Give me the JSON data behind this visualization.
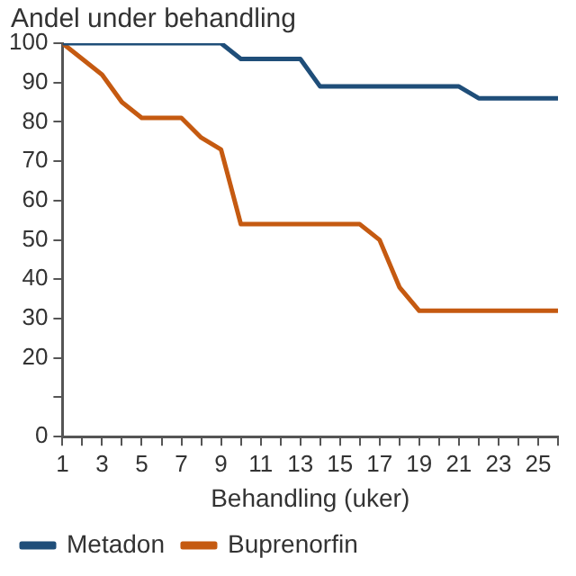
{
  "chart_data": {
    "type": "line",
    "title": "Andel under behandling",
    "xlabel": "Behandling (uker)",
    "x": [
      1,
      2,
      3,
      4,
      5,
      6,
      7,
      8,
      9,
      10,
      11,
      12,
      13,
      14,
      15,
      16,
      17,
      18,
      19,
      20,
      21,
      22,
      23,
      24,
      25,
      26
    ],
    "series": [
      {
        "name": "Metadon",
        "color": "#1f4e79",
        "values": [
          100,
          100,
          100,
          100,
          100,
          100,
          100,
          100,
          100,
          96,
          96,
          96,
          96,
          89,
          89,
          89,
          89,
          89,
          89,
          89,
          89,
          86,
          86,
          86,
          86,
          86
        ]
      },
      {
        "name": "Buprenorfin",
        "color": "#c55a11",
        "values": [
          100,
          96,
          92,
          85,
          81,
          81,
          81,
          76,
          73,
          54,
          54,
          54,
          54,
          54,
          54,
          54,
          50,
          38,
          32,
          32,
          32,
          32,
          32,
          32,
          32,
          32
        ]
      }
    ],
    "xlim": [
      1,
      26
    ],
    "xticks": [
      1,
      {
        "value": 2,
        "label": null
      },
      3,
      {
        "value": 4,
        "label": null
      },
      5,
      {
        "value": 6,
        "label": null
      },
      7,
      {
        "value": 8,
        "label": null
      },
      9,
      {
        "value": 10,
        "label": null
      },
      11,
      {
        "value": 12,
        "label": null
      },
      13,
      {
        "value": 14,
        "label": null
      },
      15,
      {
        "value": 16,
        "label": null
      },
      17,
      {
        "value": 18,
        "label": null
      },
      19,
      {
        "value": 20,
        "label": null
      },
      21,
      {
        "value": 22,
        "label": null
      },
      23,
      {
        "value": 24,
        "label": null
      },
      25,
      {
        "value": 26,
        "label": null
      }
    ],
    "ylim": [
      0,
      100
    ],
    "yticks": [
      0,
      {
        "value": 10,
        "label": null
      },
      20,
      30,
      40,
      50,
      60,
      70,
      80,
      90,
      100
    ],
    "grid": false,
    "legend": "bottom",
    "marker": "none",
    "line_style": "solid"
  }
}
